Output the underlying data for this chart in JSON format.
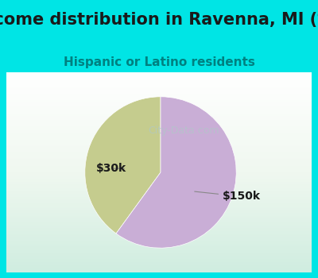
{
  "title": "Income distribution in Ravenna, MI (%)",
  "subtitle": "Hispanic or Latino residents",
  "slices": [
    {
      "label": "$30k",
      "value": 40,
      "color": "#c5cc8e"
    },
    {
      "label": "$150k",
      "value": 60,
      "color": "#c9aed6"
    }
  ],
  "bg_color_top": "#00e5e5",
  "bg_color_chart": "#e8f5e8",
  "title_color": "#1a1a1a",
  "subtitle_color": "#008080",
  "label_color": "#1a1a1a",
  "watermark": "City-Data.com",
  "watermark_color": "#b0c8c8",
  "start_angle": 90,
  "title_fontsize": 15,
  "subtitle_fontsize": 11,
  "label_fontsize": 10
}
